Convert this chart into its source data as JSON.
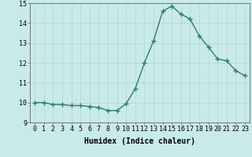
{
  "x": [
    0,
    1,
    2,
    3,
    4,
    5,
    6,
    7,
    8,
    9,
    10,
    11,
    12,
    13,
    14,
    15,
    16,
    17,
    18,
    19,
    20,
    21,
    22,
    23
  ],
  "y": [
    10.0,
    10.0,
    9.9,
    9.9,
    9.85,
    9.85,
    9.8,
    9.75,
    9.6,
    9.6,
    9.95,
    10.7,
    12.0,
    13.1,
    14.6,
    14.85,
    14.45,
    14.2,
    13.35,
    12.8,
    12.2,
    12.1,
    11.6,
    11.35
  ],
  "line_color": "#2e7d6e",
  "marker": "+",
  "marker_size": 4,
  "marker_linewidth": 1.0,
  "bg_color": "#c9eaea",
  "grid_color": "#b2d4d4",
  "xlabel": "Humidex (Indice chaleur)",
  "xlim": [
    -0.5,
    23.5
  ],
  "ylim": [
    9,
    15
  ],
  "yticks": [
    9,
    10,
    11,
    12,
    13,
    14,
    15
  ],
  "xticks": [
    0,
    1,
    2,
    3,
    4,
    5,
    6,
    7,
    8,
    9,
    10,
    11,
    12,
    13,
    14,
    15,
    16,
    17,
    18,
    19,
    20,
    21,
    22,
    23
  ],
  "tick_fontsize": 6,
  "label_fontsize": 7,
  "line_width": 1.0
}
